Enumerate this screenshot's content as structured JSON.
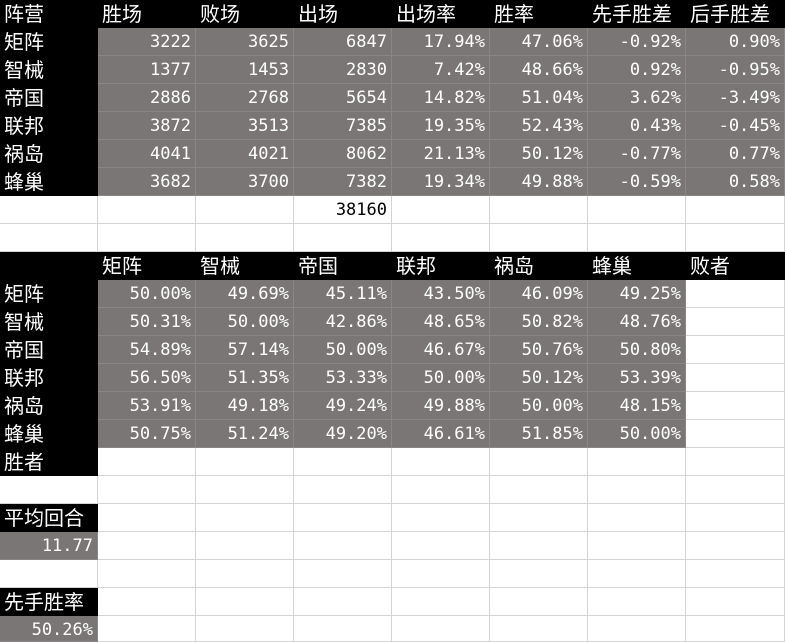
{
  "top_table": {
    "headers": [
      "阵营",
      "胜场",
      "败场",
      "出场",
      "出场率",
      "胜率",
      "先手胜差",
      "后手胜差"
    ],
    "rows": [
      [
        "矩阵",
        "3222",
        "3625",
        "6847",
        "17.94%",
        "47.06%",
        "-0.92%",
        "0.90%"
      ],
      [
        "智械",
        "1377",
        "1453",
        "2830",
        "7.42%",
        "48.66%",
        "0.92%",
        "-0.95%"
      ],
      [
        "帝国",
        "2886",
        "2768",
        "5654",
        "14.82%",
        "51.04%",
        "3.62%",
        "-3.49%"
      ],
      [
        "联邦",
        "3872",
        "3513",
        "7385",
        "19.35%",
        "52.43%",
        "0.43%",
        "-0.45%"
      ],
      [
        "祸岛",
        "4041",
        "4021",
        "8062",
        "21.13%",
        "50.12%",
        "-0.77%",
        "0.77%"
      ],
      [
        "蜂巢",
        "3682",
        "3700",
        "7382",
        "19.34%",
        "49.88%",
        "-0.59%",
        "0.58%"
      ]
    ],
    "total": "38160"
  },
  "matrix_table": {
    "corner": "",
    "col_headers": [
      "矩阵",
      "智械",
      "帝国",
      "联邦",
      "祸岛",
      "蜂巢",
      "败者"
    ],
    "row_headers": [
      "矩阵",
      "智械",
      "帝国",
      "联邦",
      "祸岛",
      "蜂巢",
      "胜者"
    ],
    "values": [
      [
        "50.00%",
        "49.69%",
        "45.11%",
        "43.50%",
        "46.09%",
        "49.25%"
      ],
      [
        "50.31%",
        "50.00%",
        "42.86%",
        "48.65%",
        "50.82%",
        "48.76%"
      ],
      [
        "54.89%",
        "57.14%",
        "50.00%",
        "46.67%",
        "50.76%",
        "50.80%"
      ],
      [
        "56.50%",
        "51.35%",
        "53.33%",
        "50.00%",
        "50.12%",
        "53.39%"
      ],
      [
        "53.91%",
        "49.18%",
        "49.24%",
        "49.88%",
        "50.00%",
        "48.15%"
      ],
      [
        "50.75%",
        "51.24%",
        "49.20%",
        "46.61%",
        "51.85%",
        "50.00%"
      ]
    ]
  },
  "avg_rounds": {
    "label": "平均回合",
    "value": "11.77"
  },
  "first_win": {
    "label": "先手胜率",
    "value": "50.26%"
  },
  "colors": {
    "header_bg": "#000000",
    "data_bg": "#7a7676",
    "grid": "#d4d4d4"
  }
}
